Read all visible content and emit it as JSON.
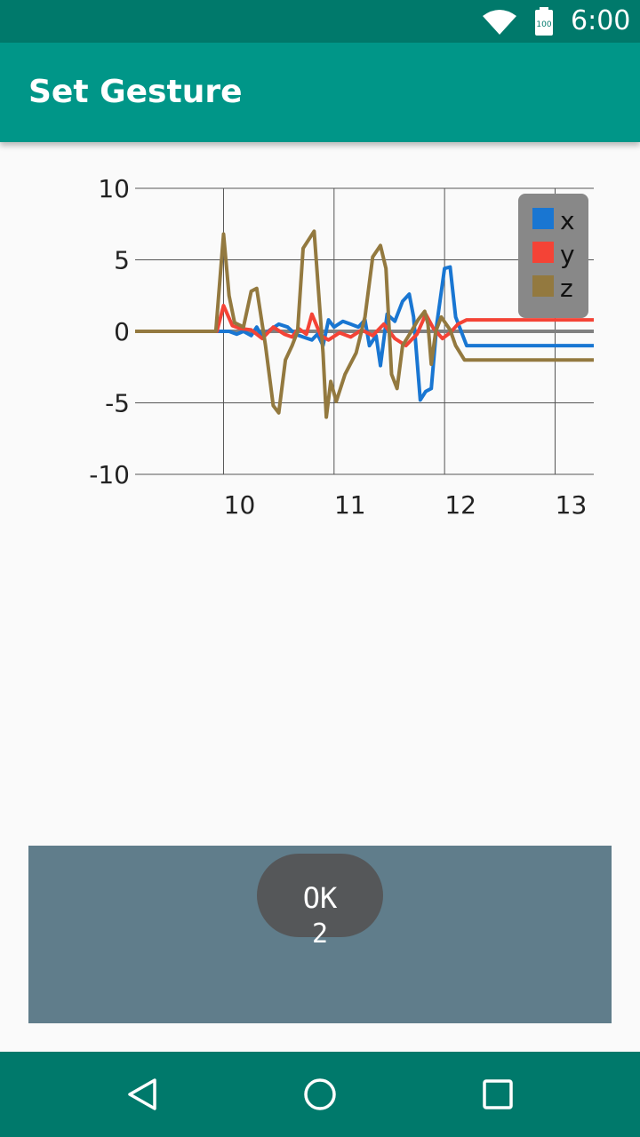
{
  "status_bar": {
    "time": "6:00",
    "battery_level": "100",
    "icons": [
      "wifi-icon",
      "battery-icon"
    ]
  },
  "app_bar": {
    "title": "Set Gesture"
  },
  "chart_data": {
    "type": "line",
    "title": "",
    "xlabel": "",
    "ylabel": "",
    "xlim": [
      9.2,
      13.35
    ],
    "ylim": [
      -10,
      10
    ],
    "x_ticks": [
      "10",
      "11",
      "12",
      "13"
    ],
    "x_tick_values": [
      10,
      11,
      12,
      13
    ],
    "y_ticks": [
      "10",
      "5",
      "0",
      "-5",
      "-10"
    ],
    "y_tick_values": [
      10,
      5,
      0,
      -5,
      -10
    ],
    "grid": true,
    "legend_position": "top-right",
    "legend_background": "#888888",
    "baseline": {
      "y": 0,
      "color": "#808080"
    },
    "series": [
      {
        "name": "x",
        "color": "#1976D2",
        "points": [
          [
            9.2,
            0
          ],
          [
            9.93,
            0
          ],
          [
            10.05,
            0
          ],
          [
            10.12,
            -0.2
          ],
          [
            10.18,
            0
          ],
          [
            10.25,
            -0.3
          ],
          [
            10.3,
            0.3
          ],
          [
            10.35,
            -0.4
          ],
          [
            10.42,
            0.1
          ],
          [
            10.5,
            0.5
          ],
          [
            10.58,
            0.3
          ],
          [
            10.65,
            -0.2
          ],
          [
            10.72,
            -0.4
          ],
          [
            10.8,
            -0.6
          ],
          [
            10.85,
            -0.2
          ],
          [
            10.9,
            -1.0
          ],
          [
            10.95,
            0.8
          ],
          [
            11.0,
            0.3
          ],
          [
            11.08,
            0.7
          ],
          [
            11.15,
            0.5
          ],
          [
            11.22,
            0.3
          ],
          [
            11.28,
            0.8
          ],
          [
            11.32,
            -1.0
          ],
          [
            11.38,
            -0.3
          ],
          [
            11.42,
            -2.4
          ],
          [
            11.48,
            1.2
          ],
          [
            11.55,
            0.7
          ],
          [
            11.62,
            2.1
          ],
          [
            11.68,
            2.6
          ],
          [
            11.72,
            1.0
          ],
          [
            11.78,
            -4.8
          ],
          [
            11.83,
            -4.2
          ],
          [
            11.88,
            -4.0
          ],
          [
            11.93,
            0.5
          ],
          [
            12.0,
            4.4
          ],
          [
            12.05,
            4.5
          ],
          [
            12.1,
            1.0
          ],
          [
            12.2,
            -1.0
          ],
          [
            13.35,
            -1.0
          ]
        ]
      },
      {
        "name": "y",
        "color": "#F44336",
        "points": [
          [
            9.2,
            0
          ],
          [
            9.94,
            0
          ],
          [
            10.0,
            1.8
          ],
          [
            10.08,
            0.4
          ],
          [
            10.15,
            0.2
          ],
          [
            10.25,
            0.1
          ],
          [
            10.35,
            -0.5
          ],
          [
            10.45,
            0.3
          ],
          [
            10.55,
            -0.2
          ],
          [
            10.62,
            -0.4
          ],
          [
            10.68,
            0.2
          ],
          [
            10.75,
            -0.2
          ],
          [
            10.8,
            1.2
          ],
          [
            10.88,
            -0.3
          ],
          [
            10.95,
            -0.6
          ],
          [
            11.05,
            -0.1
          ],
          [
            11.15,
            -0.4
          ],
          [
            11.25,
            0.1
          ],
          [
            11.35,
            -0.3
          ],
          [
            11.45,
            0.5
          ],
          [
            11.55,
            -0.5
          ],
          [
            11.65,
            -1.0
          ],
          [
            11.75,
            -0.2
          ],
          [
            11.83,
            1.2
          ],
          [
            11.9,
            0.2
          ],
          [
            11.98,
            -0.5
          ],
          [
            12.05,
            -0.1
          ],
          [
            12.12,
            0.5
          ],
          [
            12.2,
            0.8
          ],
          [
            13.35,
            0.8
          ]
        ]
      },
      {
        "name": "z",
        "color": "#93793F",
        "points": [
          [
            9.2,
            0
          ],
          [
            9.93,
            0
          ],
          [
            10.0,
            6.8
          ],
          [
            10.05,
            2.5
          ],
          [
            10.1,
            0.6
          ],
          [
            10.18,
            0.3
          ],
          [
            10.25,
            2.8
          ],
          [
            10.3,
            3.0
          ],
          [
            10.38,
            -1.0
          ],
          [
            10.45,
            -5.2
          ],
          [
            10.5,
            -5.7
          ],
          [
            10.56,
            -2.0
          ],
          [
            10.62,
            -1.0
          ],
          [
            10.67,
            0
          ],
          [
            10.72,
            5.8
          ],
          [
            10.82,
            7.0
          ],
          [
            10.9,
            -1.5
          ],
          [
            10.93,
            -6.0
          ],
          [
            10.97,
            -3.5
          ],
          [
            11.02,
            -4.9
          ],
          [
            11.1,
            -3.0
          ],
          [
            11.2,
            -1.5
          ],
          [
            11.28,
            1.0
          ],
          [
            11.35,
            5.2
          ],
          [
            11.42,
            6.0
          ],
          [
            11.47,
            4.4
          ],
          [
            11.52,
            -3.0
          ],
          [
            11.57,
            -4.0
          ],
          [
            11.62,
            -1.0
          ],
          [
            11.7,
            0
          ],
          [
            11.76,
            0.8
          ],
          [
            11.82,
            1.4
          ],
          [
            11.85,
            0.5
          ],
          [
            11.88,
            -2.3
          ],
          [
            11.92,
            0
          ],
          [
            11.97,
            1.0
          ],
          [
            12.05,
            0.1
          ],
          [
            12.1,
            -1.0
          ],
          [
            12.18,
            -2.0
          ],
          [
            13.35,
            -2.0
          ]
        ]
      }
    ]
  },
  "dialog": {
    "button_label": "OK",
    "counter": "2"
  },
  "nav_bar": {
    "back": "back-icon",
    "home": "home-icon",
    "recents": "recents-icon"
  }
}
